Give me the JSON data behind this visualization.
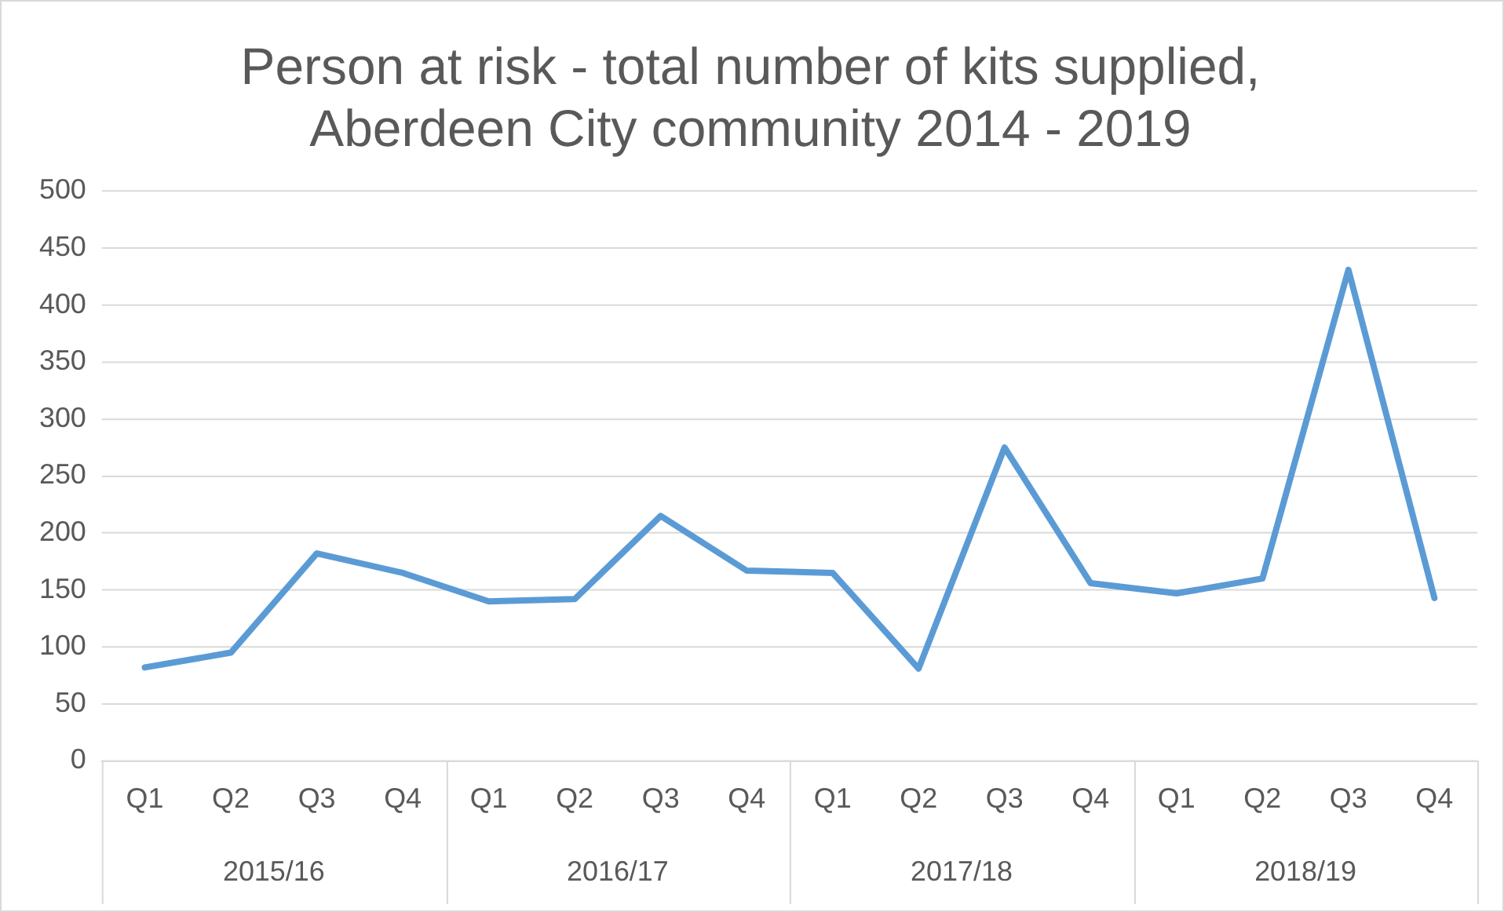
{
  "chart_data": {
    "type": "line",
    "title": "Person at risk - total number of kits supplied, Aberdeen City community 2014 - 2019",
    "categories": [
      "Q1",
      "Q2",
      "Q3",
      "Q4",
      "Q1",
      "Q2",
      "Q3",
      "Q4",
      "Q1",
      "Q2",
      "Q3",
      "Q4",
      "Q1",
      "Q2",
      "Q3",
      "Q4"
    ],
    "series": [
      {
        "color": "#5b9bd5",
        "values": [
          82,
          95,
          182,
          165,
          140,
          142,
          215,
          167,
          165,
          81,
          275,
          156,
          147,
          160,
          431,
          143
        ]
      }
    ],
    "annotations": [
      "2015/16",
      "2016/17",
      "2017/18",
      "2018/19"
    ],
    "ylim": [
      0,
      500
    ],
    "yticks": [
      0,
      50,
      100,
      150,
      200,
      250,
      300,
      350,
      400,
      450,
      500
    ],
    "grid": "y",
    "legend": false,
    "marker": "none",
    "line_style": "solid"
  }
}
